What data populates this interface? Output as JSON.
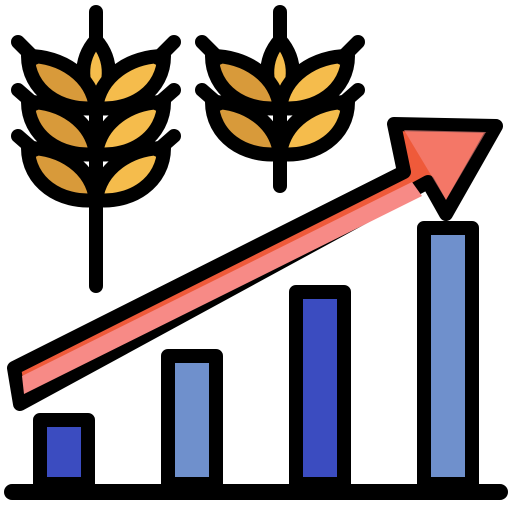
{
  "icon": {
    "name": "agriculture-growth-icon",
    "colors": {
      "outline": "#000000",
      "grain_light": "#f5bc4c",
      "grain_dark": "#d89a3a",
      "bar_dark": "#3b4cc0",
      "bar_light": "#6f90cc",
      "arrow_fill": "#ef5a3a",
      "arrow_highlight": "#f78a86",
      "background": "#ffffff"
    },
    "bars": [
      {
        "level": 1,
        "tone": "dark"
      },
      {
        "level": 2,
        "tone": "light"
      },
      {
        "level": 3,
        "tone": "dark"
      },
      {
        "level": 4,
        "tone": "light"
      }
    ]
  }
}
